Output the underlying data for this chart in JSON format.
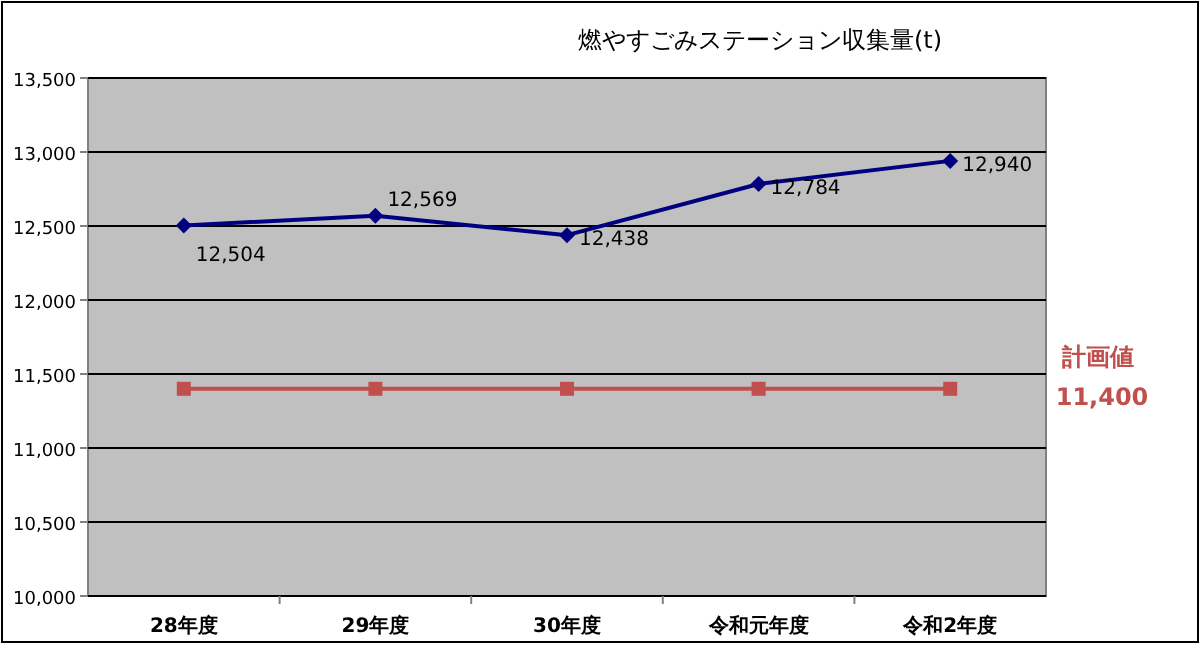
{
  "chart_data": {
    "type": "line",
    "title": "燃やすごみステーション収集量(t)",
    "categories": [
      "28年度",
      "29年度",
      "30年度",
      "令和元年度",
      "令和2年度"
    ],
    "series": [
      {
        "color": "#000080",
        "marker": "diamond",
        "values": [
          12504,
          12569,
          12438,
          12784,
          12940
        ],
        "value_labels": [
          "12,504",
          "12,569",
          "12,438",
          "12,784",
          "12,940"
        ]
      },
      {
        "name": "計画値",
        "color": "#c0504d",
        "marker": "square",
        "values": [
          11400,
          11400,
          11400,
          11400,
          11400
        ]
      }
    ],
    "annotations": [
      "11,400"
    ],
    "ylim": [
      10000,
      13500
    ],
    "yticks": [
      {
        "value": 10000,
        "label": "10,000"
      },
      {
        "value": 10500,
        "label": "10,500"
      },
      {
        "value": 11000,
        "label": "11,000"
      },
      {
        "value": 11500,
        "label": "11,500"
      },
      {
        "value": 12000,
        "label": "12,000"
      },
      {
        "value": 12500,
        "label": "12,500"
      },
      {
        "value": 13000,
        "label": "13,000"
      },
      {
        "value": 13500,
        "label": "13,500"
      }
    ],
    "grid": "y",
    "legend": false
  }
}
